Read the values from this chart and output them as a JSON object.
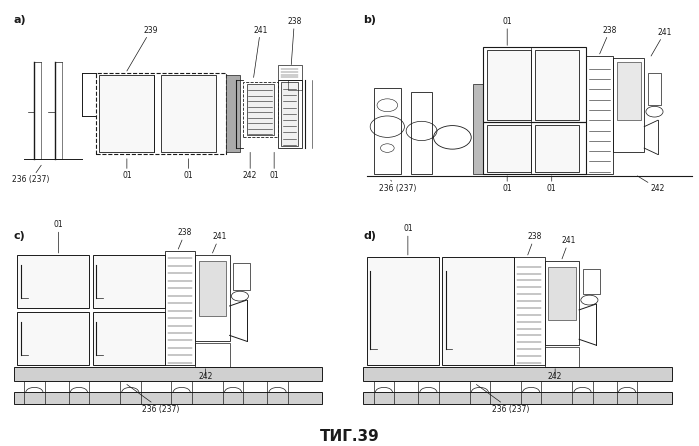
{
  "title": "ΤИГ.39",
  "bg_color": "#ffffff",
  "line_color": "#1a1a1a",
  "panels": [
    "a)",
    "b)",
    "c)",
    "d)"
  ],
  "labels": {
    "236_237": "236 (237)",
    "238": "238",
    "239": "239",
    "241": "241",
    "242": "242",
    "01": "01"
  },
  "fig_width": 6.99,
  "fig_height": 4.46,
  "dpi": 100
}
